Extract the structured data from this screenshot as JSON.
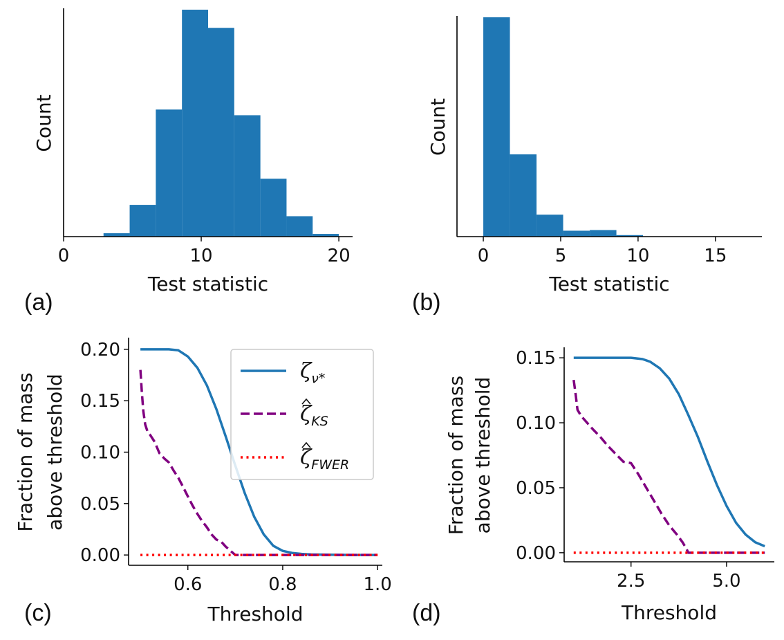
{
  "chart_data": [
    {
      "id": "a",
      "panel_label": "(a)",
      "type": "bar",
      "xlabel": "Test statistic",
      "ylabel": "Count",
      "xlim": [
        0,
        21
      ],
      "ylim": [
        0,
        1.0
      ],
      "y_ticks_shown": false,
      "xticks": [
        0,
        10,
        20
      ],
      "xtick_labels": [
        "0",
        "10",
        "20"
      ],
      "bins": [
        {
          "x0": 2.9,
          "x1": 4.8,
          "count": 0.015
        },
        {
          "x0": 4.8,
          "x1": 6.7,
          "count": 0.14
        },
        {
          "x0": 6.7,
          "x1": 8.6,
          "count": 0.56
        },
        {
          "x0": 8.6,
          "x1": 10.5,
          "count": 1.0
        },
        {
          "x0": 10.5,
          "x1": 12.4,
          "count": 0.92
        },
        {
          "x0": 12.4,
          "x1": 14.3,
          "count": 0.535
        },
        {
          "x0": 14.3,
          "x1": 16.2,
          "count": 0.255
        },
        {
          "x0": 16.2,
          "x1": 18.1,
          "count": 0.09
        },
        {
          "x0": 18.1,
          "x1": 20.0,
          "count": 0.012
        }
      ]
    },
    {
      "id": "b",
      "panel_label": "(b)",
      "type": "bar",
      "xlabel": "Test statistic",
      "ylabel": "Count",
      "xlim": [
        -1.7,
        18.0
      ],
      "ylim": [
        0,
        1.0
      ],
      "y_ticks_shown": false,
      "xticks": [
        0,
        5,
        10,
        15
      ],
      "xtick_labels": [
        "0",
        "5",
        "10",
        "15"
      ],
      "bins": [
        {
          "x0": 0.0,
          "x1": 1.72,
          "count": 1.0
        },
        {
          "x0": 1.72,
          "x1": 3.44,
          "count": 0.375
        },
        {
          "x0": 3.44,
          "x1": 5.16,
          "count": 0.1
        },
        {
          "x0": 5.16,
          "x1": 6.88,
          "count": 0.027
        },
        {
          "x0": 6.88,
          "x1": 8.6,
          "count": 0.03
        },
        {
          "x0": 8.6,
          "x1": 10.32,
          "count": 0.007
        }
      ]
    },
    {
      "id": "c",
      "panel_label": "(c)",
      "type": "line",
      "xlabel": "Threshold",
      "ylabel": [
        "Fraction of mass",
        "above threshold"
      ],
      "xlim": [
        0.475,
        1.01
      ],
      "ylim": [
        -0.01,
        0.21
      ],
      "xticks": [
        0.6,
        0.8,
        1.0
      ],
      "xtick_labels": [
        "0.6",
        "0.8",
        "1.0"
      ],
      "yticks": [
        0.0,
        0.05,
        0.1,
        0.15,
        0.2
      ],
      "ytick_labels": [
        "0.00",
        "0.05",
        "0.10",
        "0.15",
        "0.20"
      ],
      "legend": {
        "position": "top-right",
        "entries": [
          {
            "symbol": "ζ",
            "sub": "ν*",
            "hat": false
          },
          {
            "symbol": "ζ",
            "sub": "KS",
            "hat": true
          },
          {
            "symbol": "ζ",
            "sub": "FWER",
            "hat": true
          }
        ]
      },
      "series": [
        {
          "name": "ζ_ν*",
          "style": "solid",
          "color": "#1f77b4",
          "x": [
            0.5,
            0.54,
            0.56,
            0.58,
            0.6,
            0.62,
            0.64,
            0.66,
            0.68,
            0.7,
            0.72,
            0.74,
            0.76,
            0.78,
            0.8,
            0.82,
            0.84,
            0.86,
            0.9,
            0.95,
            1.0
          ],
          "y": [
            0.2,
            0.2,
            0.2,
            0.199,
            0.193,
            0.182,
            0.165,
            0.142,
            0.115,
            0.087,
            0.06,
            0.037,
            0.02,
            0.009,
            0.004,
            0.002,
            0.001,
            0.0005,
            0.0002,
            0.0,
            0.0
          ]
        },
        {
          "name": "ζ̂_KS",
          "style": "dashed",
          "color": "#800080",
          "x": [
            0.5,
            0.503,
            0.506,
            0.51,
            0.515,
            0.52,
            0.53,
            0.54,
            0.55,
            0.56,
            0.57,
            0.58,
            0.59,
            0.6,
            0.61,
            0.62,
            0.63,
            0.64,
            0.65,
            0.66,
            0.67,
            0.68,
            0.69,
            0.695,
            0.7,
            0.75,
            0.8,
            0.85,
            0.9,
            0.95,
            1.0
          ],
          "y": [
            0.18,
            0.158,
            0.14,
            0.127,
            0.12,
            0.117,
            0.11,
            0.099,
            0.094,
            0.09,
            0.082,
            0.075,
            0.066,
            0.057,
            0.048,
            0.04,
            0.033,
            0.027,
            0.02,
            0.015,
            0.013,
            0.008,
            0.004,
            0.002,
            0.0,
            0.0,
            0.0,
            0.0,
            0.0,
            0.0,
            0.0
          ]
        },
        {
          "name": "ζ̂_FWER",
          "style": "dotted",
          "color": "#ff0000",
          "x": [
            0.5,
            1.0
          ],
          "y": [
            0.0,
            0.0
          ]
        }
      ]
    },
    {
      "id": "d",
      "panel_label": "(d)",
      "type": "line",
      "xlabel": "Threshold",
      "ylabel": [
        "Fraction of mass",
        "above threshold"
      ],
      "xlim": [
        0.75,
        6.25
      ],
      "ylim": [
        -0.007,
        0.157
      ],
      "xticks": [
        2.5,
        5.0
      ],
      "xtick_labels": [
        "2.5",
        "5.0"
      ],
      "yticks": [
        0.0,
        0.05,
        0.1,
        0.15
      ],
      "ytick_labels": [
        "0.00",
        "0.05",
        "0.10",
        "0.15"
      ],
      "series": [
        {
          "name": "ζ_ν*",
          "style": "solid",
          "color": "#1f77b4",
          "x": [
            1.0,
            2.0,
            2.5,
            2.8,
            3.0,
            3.25,
            3.5,
            3.75,
            4.0,
            4.25,
            4.5,
            4.75,
            5.0,
            5.25,
            5.5,
            5.75,
            6.0
          ],
          "y": [
            0.15,
            0.15,
            0.15,
            0.149,
            0.147,
            0.142,
            0.134,
            0.122,
            0.106,
            0.089,
            0.07,
            0.052,
            0.036,
            0.023,
            0.014,
            0.008,
            0.005
          ]
        },
        {
          "name": "ζ̂_KS",
          "style": "dashed",
          "color": "#800080",
          "x": [
            1.0,
            1.05,
            1.1,
            1.2,
            1.35,
            1.5,
            1.7,
            1.9,
            2.1,
            2.3,
            2.5,
            2.7,
            2.9,
            3.1,
            3.3,
            3.5,
            3.7,
            3.85,
            3.95,
            4.0,
            4.5,
            5.0,
            5.5,
            6.0
          ],
          "y": [
            0.133,
            0.122,
            0.11,
            0.105,
            0.1,
            0.095,
            0.089,
            0.082,
            0.076,
            0.07,
            0.069,
            0.06,
            0.05,
            0.04,
            0.03,
            0.021,
            0.014,
            0.008,
            0.003,
            0.0,
            0.0,
            0.0,
            0.0,
            0.0
          ]
        },
        {
          "name": "ζ̂_FWER",
          "style": "dotted",
          "color": "#ff0000",
          "x": [
            1.0,
            6.0
          ],
          "y": [
            0.0,
            0.0
          ]
        }
      ]
    }
  ]
}
